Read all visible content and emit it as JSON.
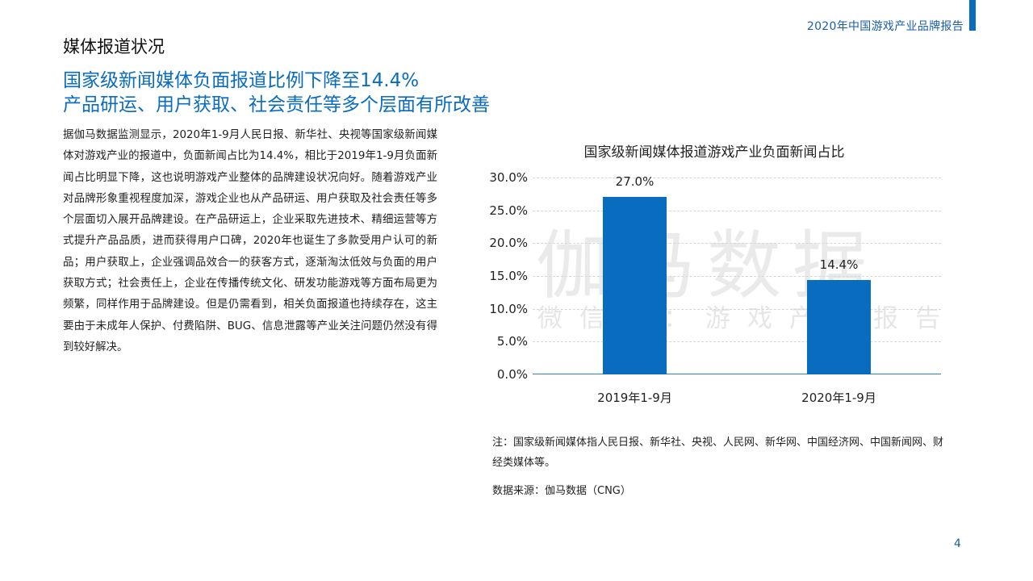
{
  "header": {
    "report_title": "2020年中国游戏产业品牌报告",
    "accent_color": "#0a6cbf"
  },
  "section": {
    "title": "媒体报道状况"
  },
  "headline": {
    "line1": "国家级新闻媒体负面报道比例下降至14.4%",
    "line2": "产品研运、用户获取、社会责任等多个层面有所改善"
  },
  "body": {
    "paragraph": "据伽马数据监测显示，2020年1-9月人民日报、新华社、央视等国家级新闻媒体对游戏产业的报道中，负面新闻占比为14.4%，相比于2019年1-9月负面新闻占比明显下降，这也说明游戏产业整体的品牌建设状况向好。随着游戏产业对品牌形象重视程度加深，游戏企业也从产品研运、用户获取及社会责任等多个层面切入展开品牌建设。在产品研运上，企业采取先进技术、精细运营等方式提升产品品质，进而获得用户口碑，2020年也诞生了多款受用户认可的新品；用户获取上，企业强调品效合一的获客方式，逐渐淘汰低效与负面的用户获取方式；社会责任上，企业在传播传统文化、研发功能游戏等方面布局更为频繁，同样作用于品牌建设。但是仍需看到，相关负面报道也持续存在，这主要由于未成年人保护、付费陷阱、BUG、信息泄露等产业关注问题仍然没有得到较好解决。"
  },
  "watermark": {
    "main": "伽马数据",
    "sub": "微信号：游戏产业报告"
  },
  "chart_data": {
    "type": "bar",
    "title": "国家级新闻媒体报道游戏产业负面新闻占比",
    "categories": [
      "2019年1-9月",
      "2020年1-9月"
    ],
    "values": [
      27.0,
      14.4
    ],
    "value_labels": [
      "27.0%",
      "14.4%"
    ],
    "xlabel": "",
    "ylabel": "",
    "ylim": [
      0,
      30
    ],
    "yticks": [
      "0.0%",
      "5.0%",
      "10.0%",
      "15.0%",
      "20.0%",
      "25.0%",
      "30.0%"
    ],
    "grid": true,
    "legend": "none",
    "bar_color": "#0a6cbf"
  },
  "footnote": {
    "note": "注：国家级新闻媒体指人民日报、新华社、央视、人民网、新华网、中国经济网、中国新闻网、财经类媒体等。",
    "source": "数据来源：伽马数据（CNG）"
  },
  "page": {
    "number": "4"
  }
}
